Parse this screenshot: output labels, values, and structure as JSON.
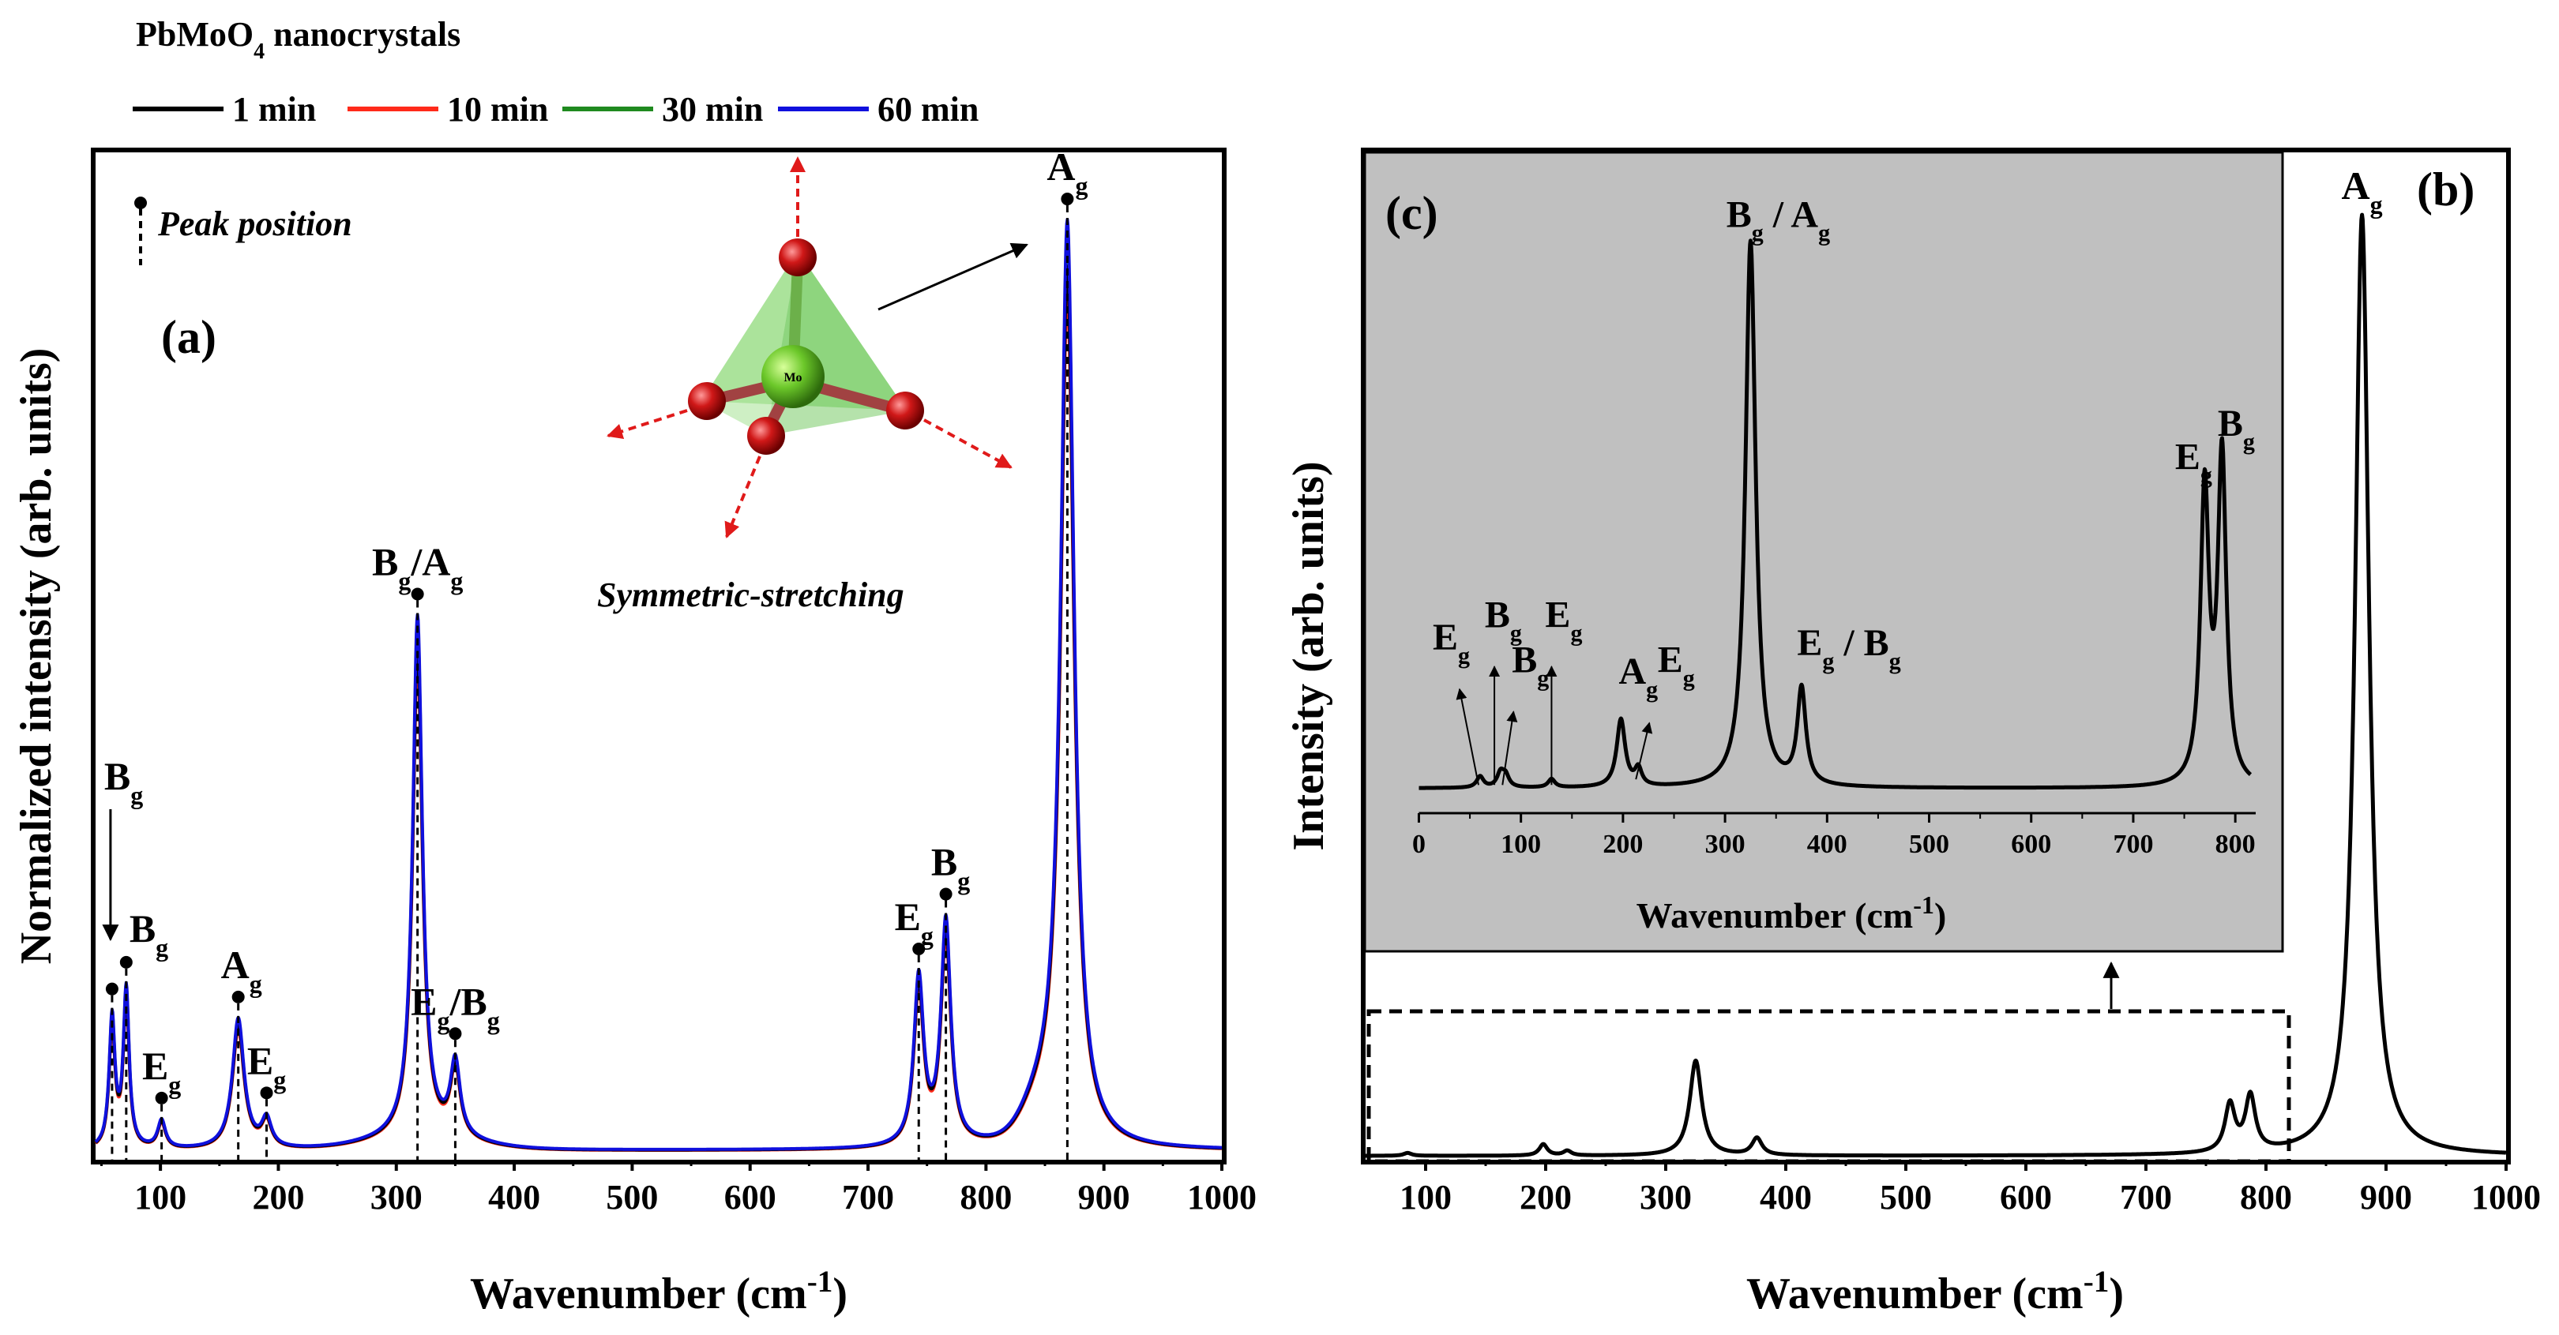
{
  "chart_data": [
    {
      "panel": "(a)",
      "type": "line",
      "legend_title": "PbMoO4 nanocrystals",
      "xlabel": "Wavenumber (cm-1)",
      "ylabel": "Normalized intensity (arb. units)",
      "xlim": [
        45,
        1000
      ],
      "ylim": [
        0,
        1.08
      ],
      "xticks": [
        100,
        200,
        300,
        400,
        500,
        600,
        700,
        800,
        900,
        1000
      ],
      "series": [
        {
          "name": "1 min",
          "color": "#000000"
        },
        {
          "name": "10 min",
          "color": "#ff2a1a"
        },
        {
          "name": "30 min",
          "color": "#1f8a1f"
        },
        {
          "name": "60 min",
          "color": "#1010dd"
        }
      ],
      "series_scale": [
        0.95,
        0.92,
        0.98,
        1.0
      ],
      "peaks": [
        {
          "x": 59,
          "label": "B",
          "sub": "g",
          "height": 0.14,
          "width": 3
        },
        {
          "x": 71,
          "label": "B",
          "sub": "g",
          "height": 0.17,
          "width": 3
        },
        {
          "x": 101,
          "label": "E",
          "sub": "g",
          "height": 0.03,
          "width": 4
        },
        {
          "x": 166,
          "label": "A",
          "sub": "g",
          "height": 0.14,
          "width": 6
        },
        {
          "x": 190,
          "label": "E",
          "sub": "g",
          "height": 0.03,
          "width": 5
        },
        {
          "x": 318,
          "label": "B",
          "sub": "g",
          "label2": "A",
          "sub2": "g",
          "height": 0.56,
          "width": 5
        },
        {
          "x": 350,
          "label": "E",
          "sub": "g",
          "label2": "B",
          "sub2": "g",
          "height": 0.08,
          "width": 5
        },
        {
          "x": 743,
          "label": "E",
          "sub": "g",
          "height": 0.18,
          "width": 5
        },
        {
          "x": 766,
          "label": "B",
          "sub": "g",
          "height": 0.24,
          "width": 5
        },
        {
          "x": 869,
          "label": "A",
          "sub": "g",
          "height": 0.99,
          "width": 7
        }
      ],
      "legend_peak": "Peak position",
      "annotation": "Symmetric-stretching",
      "atom_label": "Mo"
    },
    {
      "panel": "(b)",
      "type": "line",
      "xlabel": "Wavenumber (cm-1)",
      "ylabel": "Intensity (arb. units)",
      "xlim": [
        50,
        1000
      ],
      "ylim": [
        0,
        1.06
      ],
      "xticks": [
        100,
        200,
        300,
        400,
        500,
        600,
        700,
        800,
        900,
        1000
      ],
      "peaks": [
        {
          "x": 85,
          "height": 0.003,
          "width": 4
        },
        {
          "x": 198,
          "height": 0.012,
          "width": 4
        },
        {
          "x": 218,
          "height": 0.005,
          "width": 4
        },
        {
          "x": 325,
          "height": 0.1,
          "width": 6
        },
        {
          "x": 376,
          "height": 0.018,
          "width": 5
        },
        {
          "x": 770,
          "height": 0.05,
          "width": 5
        },
        {
          "x": 787,
          "height": 0.058,
          "width": 5
        },
        {
          "x": 880,
          "height": 0.99,
          "width": 7,
          "label": "A",
          "sub": "g"
        }
      ]
    },
    {
      "panel": "(c)",
      "type": "line",
      "xlabel": "Wavenumber (cm-1)",
      "xlim": [
        -5,
        820
      ],
      "ylim": [
        -0.04,
        1.05
      ],
      "xticks": [
        0,
        100,
        200,
        300,
        400,
        500,
        600,
        700,
        800
      ],
      "peaks": [
        {
          "x": 60,
          "height": 0.02,
          "width": 4,
          "label": "E",
          "sub": "g"
        },
        {
          "x": 80,
          "height": 0.025,
          "width": 4,
          "label": "B",
          "sub": "g"
        },
        {
          "x": 85,
          "height": 0.02,
          "width": 4,
          "label": "B",
          "sub": "g"
        },
        {
          "x": 130,
          "height": 0.015,
          "width": 4,
          "label": "E",
          "sub": "g"
        },
        {
          "x": 198,
          "height": 0.12,
          "width": 5,
          "label": "A",
          "sub": "g"
        },
        {
          "x": 215,
          "height": 0.03,
          "width": 4,
          "label": "E",
          "sub": "g"
        },
        {
          "x": 325,
          "height": 0.97,
          "width": 6,
          "label": "B",
          "sub": "g",
          "label2": "A",
          "sub2": "g"
        },
        {
          "x": 375,
          "height": 0.17,
          "width": 5,
          "label": "E",
          "sub": "g",
          "label2": "B",
          "sub2": "g"
        },
        {
          "x": 770,
          "height": 0.52,
          "width": 5,
          "label": "E",
          "sub": "g"
        },
        {
          "x": 787,
          "height": 0.58,
          "width": 5,
          "label": "B",
          "sub": "g"
        }
      ]
    }
  ]
}
